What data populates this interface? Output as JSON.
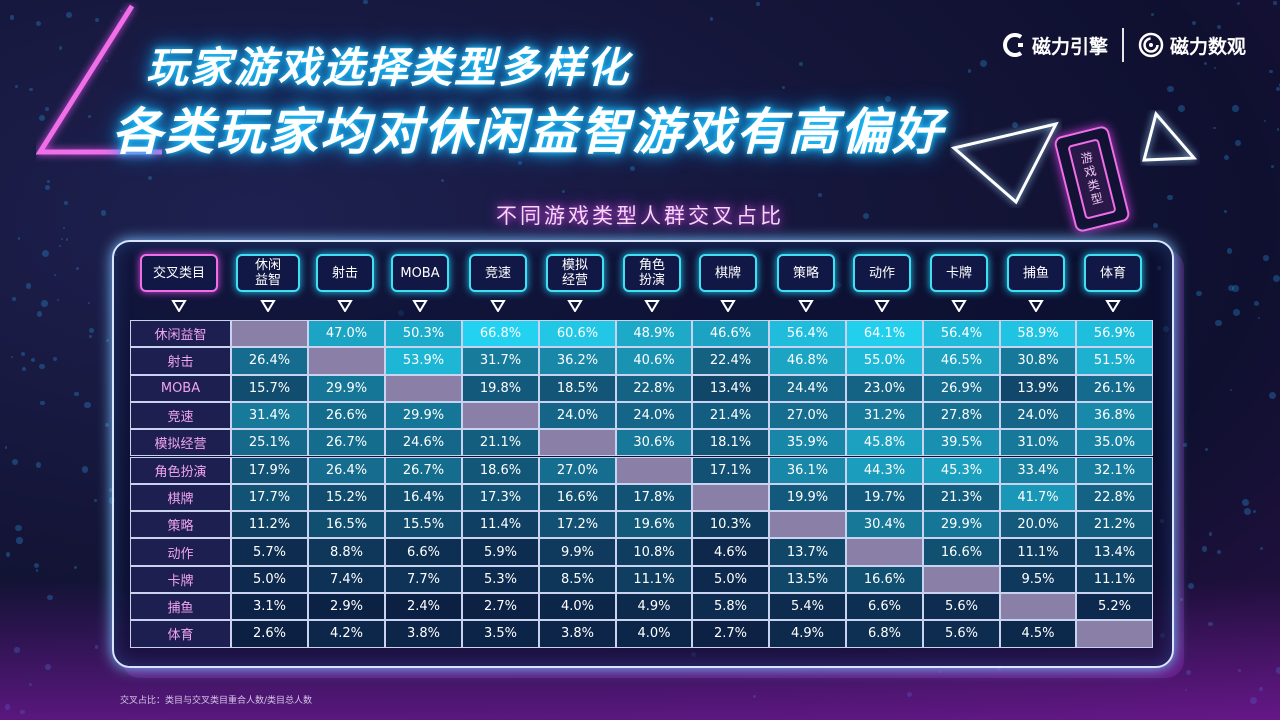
{
  "header": {
    "title_line1": "玩家游戏选择类型多样化",
    "title_line2": "各类玩家均对休闲益智游戏有高偏好",
    "logos": [
      {
        "label": "磁力引擎",
        "icon": "c-bracket-logo-icon"
      },
      {
        "label": "磁力数观",
        "icon": "spiral-logo-icon"
      }
    ],
    "deco_tag_text": "游戏类型"
  },
  "colors": {
    "title_glow": "#1fc6ff",
    "accent_pink": "#f06ee8",
    "header_cyan": "#40e0f4",
    "diagonal_cell": "#8a7fa6",
    "cell_scale_low": "#0a1438",
    "cell_scale_high": "#22d3f0"
  },
  "chart_data": {
    "type": "heatmap",
    "title": "不同游戏类型人群交叉占比",
    "corner_label": "交叉类目",
    "columns": [
      "休闲\n益智",
      "射击",
      "MOBA",
      "竞速",
      "模拟\n经营",
      "角色\n扮演",
      "棋牌",
      "策略",
      "动作",
      "卡牌",
      "捕鱼",
      "体育"
    ],
    "rows": [
      "休闲益智",
      "射击",
      "MOBA",
      "竞速",
      "模拟经营",
      "角色扮演",
      "棋牌",
      "策略",
      "动作",
      "卡牌",
      "捕鱼",
      "体育"
    ],
    "unit": "%",
    "values": [
      [
        null,
        47.0,
        50.3,
        66.8,
        60.6,
        48.9,
        46.6,
        56.4,
        64.1,
        56.4,
        58.9,
        56.9
      ],
      [
        26.4,
        null,
        53.9,
        31.7,
        36.2,
        40.6,
        22.4,
        46.8,
        55.0,
        46.5,
        30.8,
        51.5
      ],
      [
        15.7,
        29.9,
        null,
        19.8,
        18.5,
        22.8,
        13.4,
        24.4,
        23.0,
        26.9,
        13.9,
        26.1
      ],
      [
        31.4,
        26.6,
        29.9,
        null,
        24.0,
        24.0,
        21.4,
        27.0,
        31.2,
        27.8,
        24.0,
        36.8
      ],
      [
        25.1,
        26.7,
        24.6,
        21.1,
        null,
        30.6,
        18.1,
        35.9,
        45.8,
        39.5,
        31.0,
        35.0
      ],
      [
        17.9,
        26.4,
        26.7,
        18.6,
        27.0,
        null,
        17.1,
        36.1,
        44.3,
        45.3,
        33.4,
        32.1
      ],
      [
        17.7,
        15.2,
        16.4,
        17.3,
        16.6,
        17.8,
        null,
        19.9,
        19.7,
        21.3,
        41.7,
        22.8
      ],
      [
        11.2,
        16.5,
        15.5,
        11.4,
        17.2,
        19.6,
        10.3,
        null,
        30.4,
        29.9,
        20.0,
        21.2
      ],
      [
        5.7,
        8.8,
        6.6,
        5.9,
        9.9,
        10.8,
        4.6,
        13.7,
        null,
        16.6,
        11.1,
        13.4
      ],
      [
        5.0,
        7.4,
        7.7,
        5.3,
        8.5,
        11.1,
        5.0,
        13.5,
        16.6,
        null,
        9.5,
        11.1
      ],
      [
        3.1,
        2.9,
        2.4,
        2.7,
        4.0,
        4.9,
        5.8,
        5.4,
        6.6,
        5.6,
        null,
        5.2
      ],
      [
        2.6,
        4.2,
        3.8,
        3.5,
        3.8,
        4.0,
        2.7,
        4.9,
        6.8,
        5.6,
        4.5,
        null
      ]
    ]
  },
  "footnote": "交叉占比：类目与交叉类目重合人数/类目总人数"
}
